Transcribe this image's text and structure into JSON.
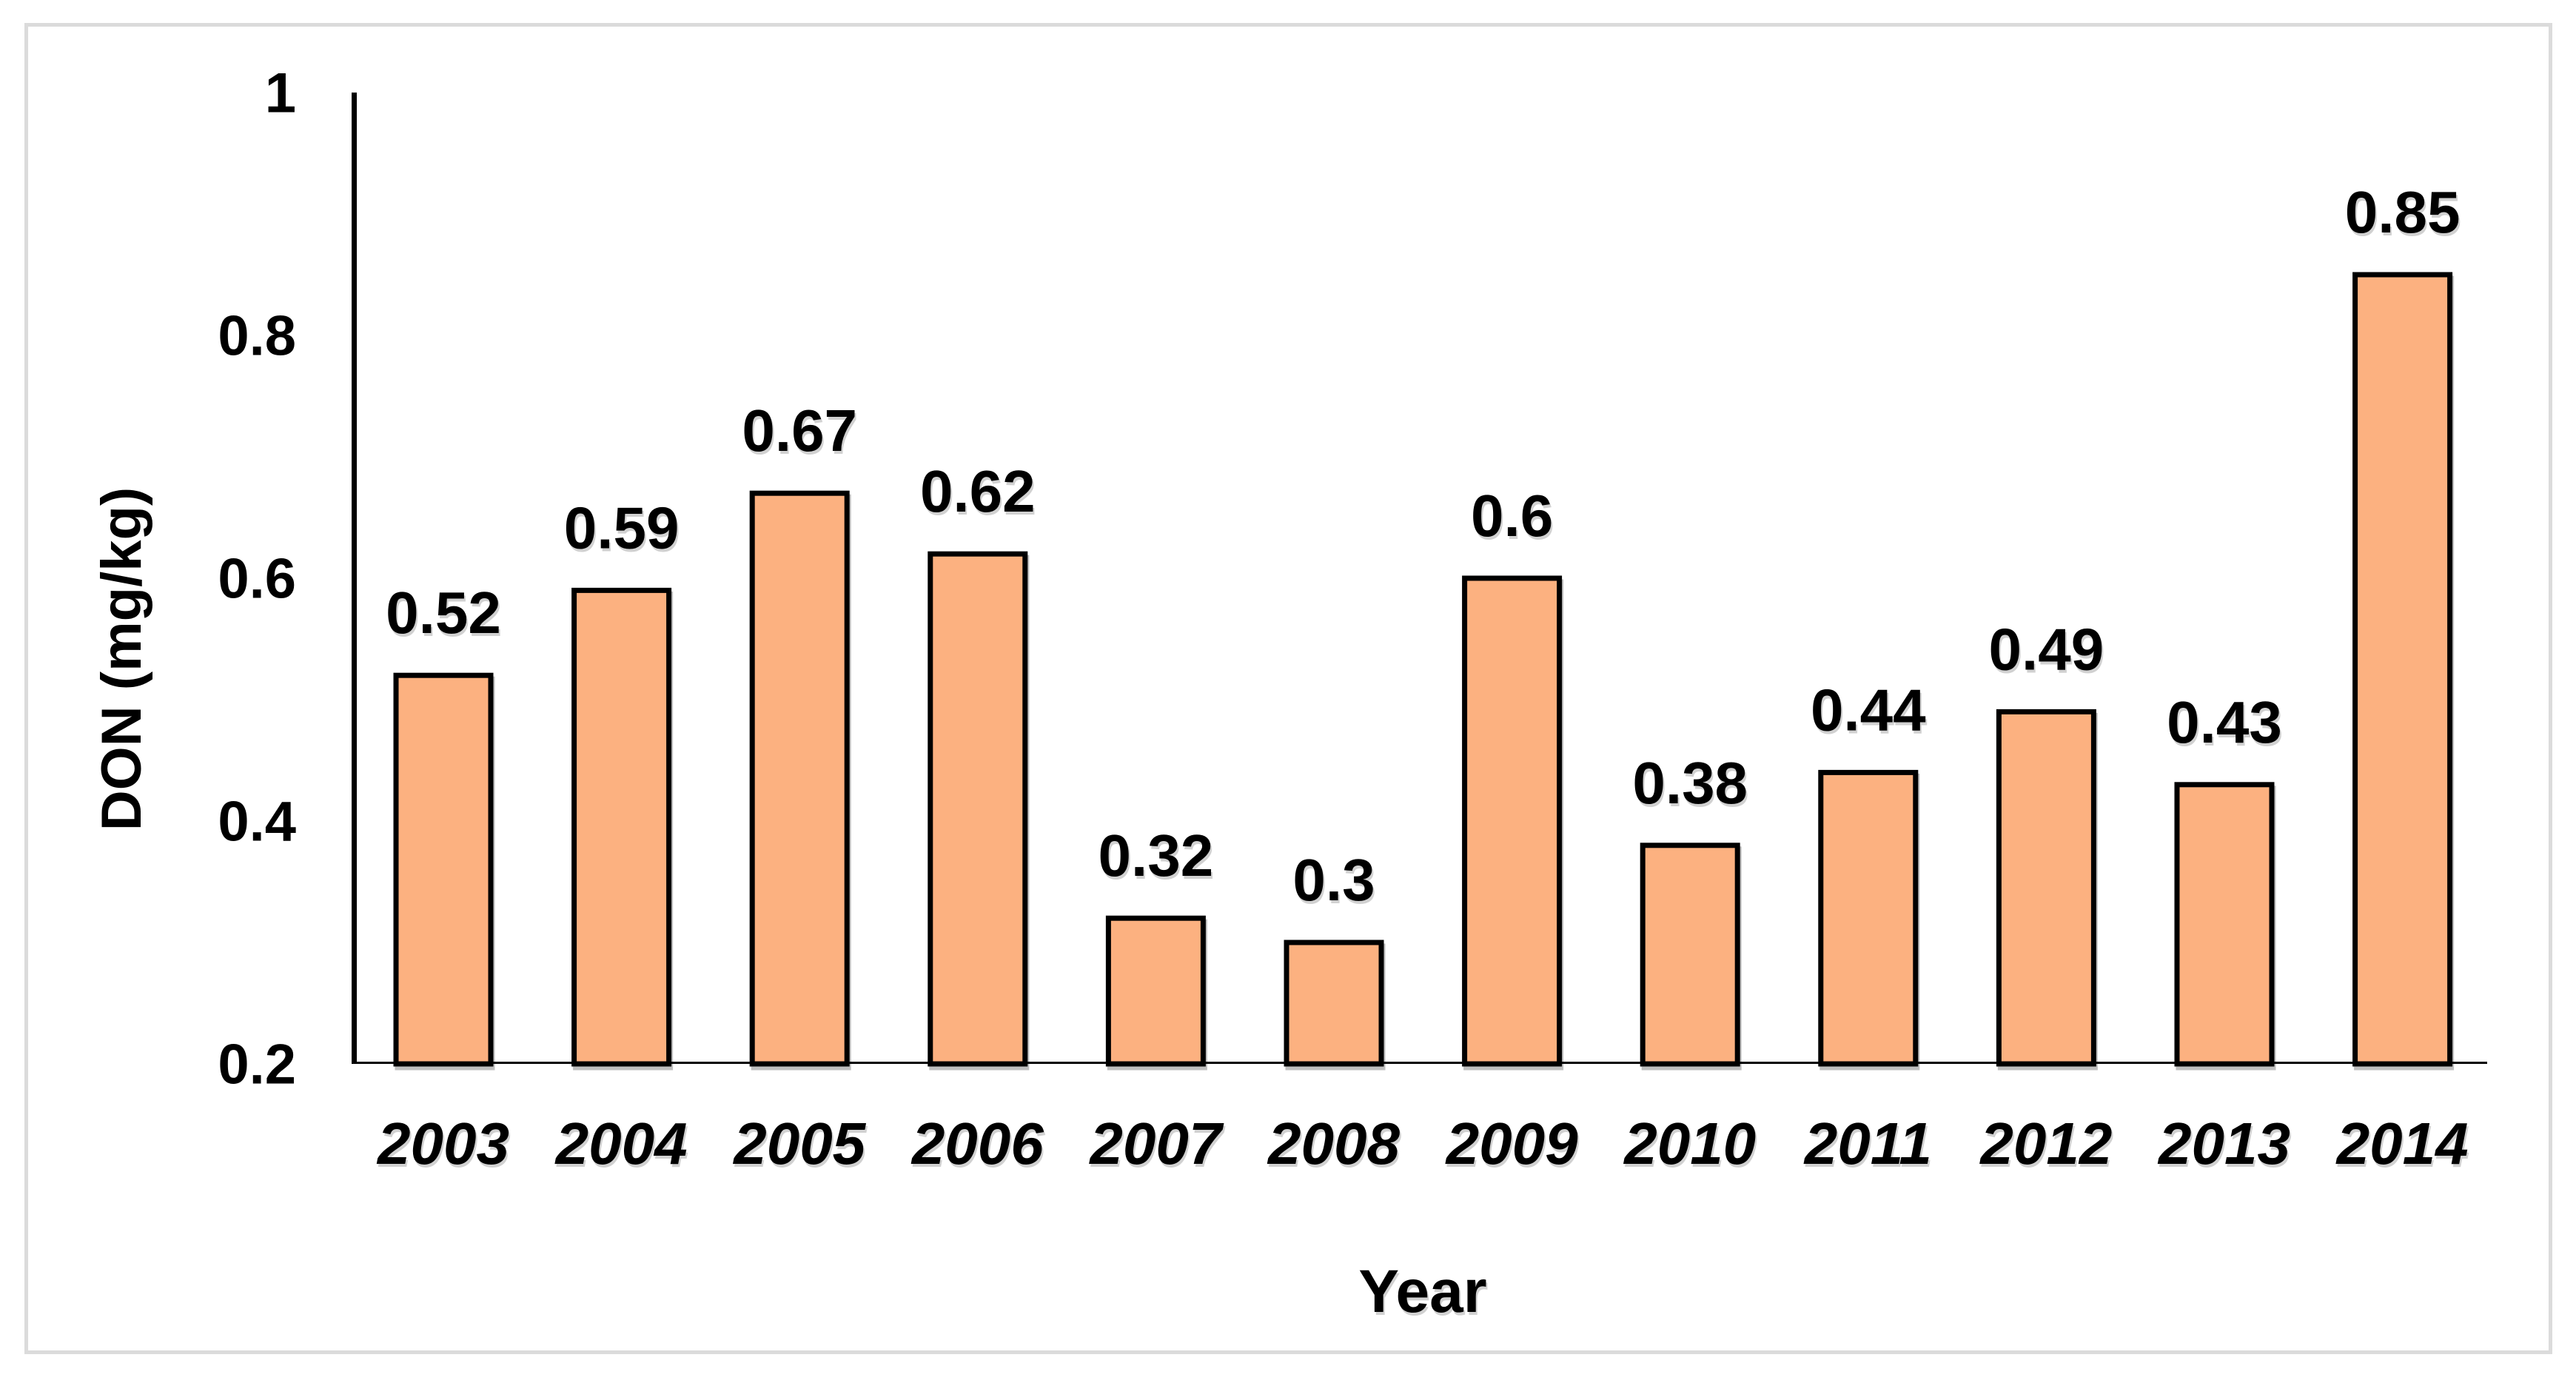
{
  "chart_data": {
    "type": "bar",
    "title": "",
    "xlabel": "Year",
    "ylabel": "DON (mg/kg)",
    "categories": [
      "2003",
      "2004",
      "2005",
      "2006",
      "2007",
      "2008",
      "2009",
      "2010",
      "2011",
      "2012",
      "2013",
      "2014"
    ],
    "values": [
      0.52,
      0.59,
      0.67,
      0.62,
      0.32,
      0.3,
      0.6,
      0.38,
      0.44,
      0.49,
      0.43,
      0.85
    ],
    "data_labels": [
      "0.52",
      "0.59",
      "0.67",
      "0.62",
      "0.32",
      "0.3",
      "0.6",
      "0.38",
      "0.44",
      "0.49",
      "0.43",
      "0.85"
    ],
    "ylim": [
      0.2,
      1
    ],
    "yticks": [
      {
        "value": 1,
        "label": "1"
      },
      {
        "value": 0.8,
        "label": "0.8"
      },
      {
        "value": 0.6,
        "label": "0.6"
      },
      {
        "value": 0.4,
        "label": "0.4"
      },
      {
        "value": 0.2,
        "label": "0.2"
      }
    ],
    "grid": false,
    "legend": null,
    "colors": {
      "bar_fill": "#FCB180",
      "bar_stroke": "#000000",
      "axis": "#000000",
      "text": "#000000",
      "frame_border": "#DBDBDB",
      "background": "#FFFFFF"
    }
  }
}
